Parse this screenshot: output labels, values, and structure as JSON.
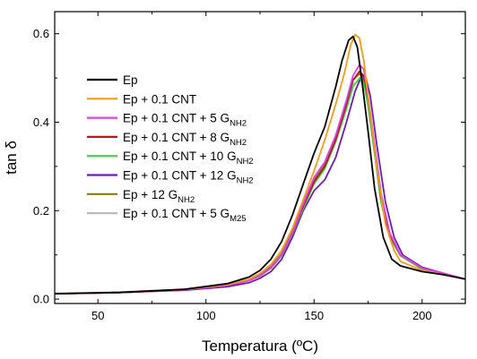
{
  "chart_data": {
    "type": "line",
    "title": "",
    "xlabel": "Temperatura  (ºC)",
    "ylabel": "tan δ",
    "xlim": [
      30,
      220
    ],
    "ylim": [
      -0.01,
      0.65
    ],
    "xticks": [
      50,
      100,
      150,
      200
    ],
    "yticks": [
      0.0,
      0.2,
      0.4,
      0.6
    ],
    "xtick_labels": [
      "50",
      "100",
      "150",
      "200"
    ],
    "ytick_labels": [
      "0.0",
      "0.2",
      "0.4",
      "0.6"
    ],
    "grid": false,
    "legend_position": "left",
    "series": [
      {
        "name": "Ep",
        "sub": "",
        "color": "#000000",
        "points": [
          [
            30,
            0.012
          ],
          [
            60,
            0.015
          ],
          [
            90,
            0.022
          ],
          [
            110,
            0.035
          ],
          [
            120,
            0.05
          ],
          [
            125,
            0.065
          ],
          [
            130,
            0.09
          ],
          [
            135,
            0.13
          ],
          [
            140,
            0.19
          ],
          [
            145,
            0.26
          ],
          [
            150,
            0.33
          ],
          [
            155,
            0.39
          ],
          [
            160,
            0.48
          ],
          [
            163,
            0.54
          ],
          [
            166,
            0.585
          ],
          [
            168,
            0.594
          ],
          [
            170,
            0.57
          ],
          [
            172,
            0.5
          ],
          [
            175,
            0.38
          ],
          [
            178,
            0.25
          ],
          [
            182,
            0.14
          ],
          [
            186,
            0.09
          ],
          [
            190,
            0.075
          ],
          [
            200,
            0.062
          ],
          [
            210,
            0.055
          ],
          [
            220,
            0.045
          ]
        ]
      },
      {
        "name": "Ep + 0.1 CNT",
        "sub": "",
        "color": "#f39c1f",
        "points": [
          [
            30,
            0.012
          ],
          [
            60,
            0.015
          ],
          [
            90,
            0.022
          ],
          [
            110,
            0.033
          ],
          [
            120,
            0.045
          ],
          [
            125,
            0.058
          ],
          [
            130,
            0.078
          ],
          [
            135,
            0.11
          ],
          [
            140,
            0.16
          ],
          [
            145,
            0.225
          ],
          [
            150,
            0.29
          ],
          [
            155,
            0.36
          ],
          [
            160,
            0.44
          ],
          [
            164,
            0.51
          ],
          [
            167,
            0.575
          ],
          [
            169,
            0.598
          ],
          [
            171,
            0.59
          ],
          [
            173,
            0.54
          ],
          [
            176,
            0.42
          ],
          [
            179,
            0.3
          ],
          [
            183,
            0.17
          ],
          [
            187,
            0.11
          ],
          [
            190,
            0.085
          ],
          [
            200,
            0.065
          ],
          [
            210,
            0.055
          ],
          [
            220,
            0.045
          ]
        ]
      },
      {
        "name": "Ep + 0.1 CNT + 5 G",
        "sub": "NH2",
        "color": "#e040e8",
        "points": [
          [
            30,
            0.012
          ],
          [
            60,
            0.015
          ],
          [
            90,
            0.021
          ],
          [
            110,
            0.031
          ],
          [
            120,
            0.042
          ],
          [
            125,
            0.053
          ],
          [
            130,
            0.072
          ],
          [
            135,
            0.1
          ],
          [
            140,
            0.15
          ],
          [
            145,
            0.215
          ],
          [
            150,
            0.275
          ],
          [
            155,
            0.31
          ],
          [
            160,
            0.37
          ],
          [
            165,
            0.45
          ],
          [
            168,
            0.505
          ],
          [
            171,
            0.53
          ],
          [
            173,
            0.52
          ],
          [
            175,
            0.46
          ],
          [
            178,
            0.35
          ],
          [
            181,
            0.24
          ],
          [
            185,
            0.15
          ],
          [
            190,
            0.1
          ],
          [
            200,
            0.07
          ],
          [
            210,
            0.058
          ],
          [
            220,
            0.045
          ]
        ]
      },
      {
        "name": "Ep + 0.1 CNT + 8 G",
        "sub": "NH2",
        "color": "#b01c1c",
        "points": [
          [
            30,
            0.012
          ],
          [
            60,
            0.015
          ],
          [
            90,
            0.021
          ],
          [
            110,
            0.031
          ],
          [
            120,
            0.042
          ],
          [
            125,
            0.053
          ],
          [
            130,
            0.071
          ],
          [
            135,
            0.1
          ],
          [
            140,
            0.15
          ],
          [
            145,
            0.21
          ],
          [
            150,
            0.265
          ],
          [
            155,
            0.3
          ],
          [
            160,
            0.36
          ],
          [
            165,
            0.44
          ],
          [
            168,
            0.495
          ],
          [
            171,
            0.515
          ],
          [
            173,
            0.505
          ],
          [
            175,
            0.455
          ],
          [
            178,
            0.34
          ],
          [
            181,
            0.23
          ],
          [
            185,
            0.145
          ],
          [
            190,
            0.1
          ],
          [
            200,
            0.07
          ],
          [
            210,
            0.058
          ],
          [
            220,
            0.045
          ]
        ]
      },
      {
        "name": "Ep + 0.1 CNT + 10 G",
        "sub": "NH2",
        "color": "#3fd64b",
        "points": [
          [
            30,
            0.012
          ],
          [
            60,
            0.015
          ],
          [
            90,
            0.021
          ],
          [
            110,
            0.031
          ],
          [
            120,
            0.042
          ],
          [
            125,
            0.052
          ],
          [
            130,
            0.07
          ],
          [
            135,
            0.098
          ],
          [
            140,
            0.148
          ],
          [
            145,
            0.205
          ],
          [
            150,
            0.26
          ],
          [
            155,
            0.295
          ],
          [
            160,
            0.355
          ],
          [
            165,
            0.43
          ],
          [
            168,
            0.48
          ],
          [
            171,
            0.5
          ],
          [
            173,
            0.49
          ],
          [
            175,
            0.44
          ],
          [
            178,
            0.33
          ],
          [
            181,
            0.22
          ],
          [
            185,
            0.14
          ],
          [
            190,
            0.098
          ],
          [
            200,
            0.068
          ],
          [
            210,
            0.057
          ],
          [
            220,
            0.045
          ]
        ]
      },
      {
        "name": "Ep + 0.1 CNT + 12 G",
        "sub": "NH2",
        "color": "#6b1fa8",
        "points": [
          [
            30,
            0.012
          ],
          [
            60,
            0.015
          ],
          [
            90,
            0.02
          ],
          [
            110,
            0.028
          ],
          [
            120,
            0.037
          ],
          [
            125,
            0.047
          ],
          [
            130,
            0.062
          ],
          [
            135,
            0.09
          ],
          [
            140,
            0.14
          ],
          [
            145,
            0.2
          ],
          [
            150,
            0.245
          ],
          [
            155,
            0.27
          ],
          [
            160,
            0.32
          ],
          [
            165,
            0.4
          ],
          [
            169,
            0.47
          ],
          [
            172,
            0.505
          ],
          [
            174,
            0.5
          ],
          [
            176,
            0.46
          ],
          [
            179,
            0.35
          ],
          [
            183,
            0.22
          ],
          [
            187,
            0.14
          ],
          [
            191,
            0.1
          ],
          [
            200,
            0.072
          ],
          [
            210,
            0.058
          ],
          [
            220,
            0.045
          ]
        ]
      },
      {
        "name": "Ep + 12 G",
        "sub": "NH2",
        "color": "#8a7a14",
        "points": [
          [
            30,
            0.012
          ],
          [
            60,
            0.015
          ],
          [
            90,
            0.021
          ],
          [
            110,
            0.031
          ],
          [
            120,
            0.043
          ],
          [
            125,
            0.054
          ],
          [
            130,
            0.073
          ],
          [
            135,
            0.102
          ],
          [
            140,
            0.152
          ],
          [
            145,
            0.215
          ],
          [
            150,
            0.27
          ],
          [
            155,
            0.305
          ],
          [
            160,
            0.365
          ],
          [
            165,
            0.445
          ],
          [
            168,
            0.495
          ],
          [
            171,
            0.51
          ],
          [
            173,
            0.495
          ],
          [
            175,
            0.445
          ],
          [
            178,
            0.33
          ],
          [
            181,
            0.22
          ],
          [
            185,
            0.14
          ],
          [
            190,
            0.098
          ],
          [
            200,
            0.068
          ],
          [
            210,
            0.057
          ],
          [
            220,
            0.045
          ]
        ]
      },
      {
        "name": "Ep + 0.1 CNT + 5 G",
        "sub": "M25",
        "color": "#b8b8c2",
        "points": [
          [
            30,
            0.013
          ],
          [
            60,
            0.016
          ],
          [
            90,
            0.022
          ],
          [
            110,
            0.032
          ],
          [
            120,
            0.044
          ],
          [
            125,
            0.055
          ],
          [
            130,
            0.074
          ],
          [
            135,
            0.104
          ],
          [
            140,
            0.155
          ],
          [
            145,
            0.22
          ],
          [
            150,
            0.275
          ],
          [
            155,
            0.31
          ],
          [
            160,
            0.37
          ],
          [
            165,
            0.44
          ],
          [
            168,
            0.485
          ],
          [
            171,
            0.495
          ],
          [
            173,
            0.485
          ],
          [
            175,
            0.435
          ],
          [
            178,
            0.33
          ],
          [
            181,
            0.22
          ],
          [
            185,
            0.14
          ],
          [
            190,
            0.098
          ],
          [
            200,
            0.068
          ],
          [
            210,
            0.057
          ],
          [
            220,
            0.045
          ]
        ]
      }
    ]
  }
}
